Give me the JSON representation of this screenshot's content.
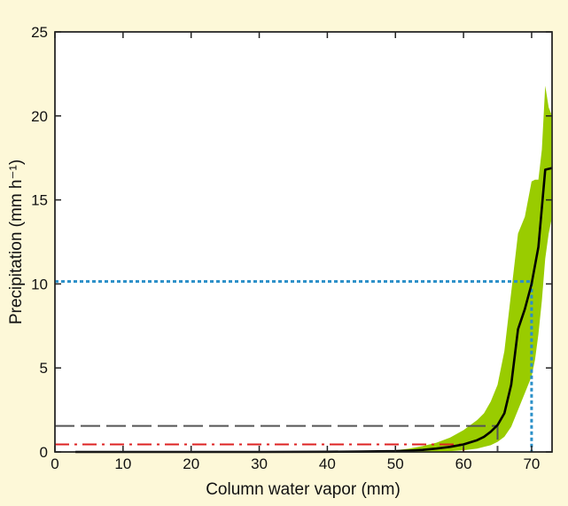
{
  "chart_data": {
    "type": "line",
    "xlabel": "Column water vapor (mm)",
    "ylabel": "Precipitation (mm h⁻¹)",
    "xlim": [
      0,
      73
    ],
    "ylim": [
      0,
      25
    ],
    "x_ticks": [
      0,
      10,
      20,
      30,
      40,
      50,
      60,
      70
    ],
    "y_ticks": [
      0,
      5,
      10,
      15,
      20,
      25
    ],
    "grid": false,
    "series": [
      {
        "kind": "line",
        "color": "#000000",
        "x": [
          3,
          10,
          20,
          30,
          40,
          45,
          50,
          52,
          54,
          56,
          58,
          60,
          62,
          63,
          64,
          65,
          66,
          67,
          68,
          69,
          70,
          71,
          72,
          73
        ],
        "y": [
          0.0,
          0.0,
          0.0,
          0.0,
          0.01,
          0.02,
          0.05,
          0.08,
          0.12,
          0.2,
          0.3,
          0.45,
          0.7,
          0.9,
          1.2,
          1.6,
          2.3,
          4.0,
          7.3,
          8.5,
          10.0,
          12.2,
          16.8,
          16.9
        ]
      }
    ],
    "band": {
      "color": "#99cc00",
      "x": [
        50,
        52,
        54,
        56,
        58,
        60,
        62,
        63,
        64,
        65,
        66,
        67,
        68,
        69,
        70,
        70.5,
        71,
        71.5,
        72,
        72.5,
        73
      ],
      "upper": [
        0.1,
        0.2,
        0.35,
        0.55,
        0.85,
        1.3,
        1.9,
        2.3,
        3.0,
        4.0,
        6.0,
        9.5,
        13.0,
        14.0,
        16.1,
        16.2,
        16.2,
        18.0,
        21.8,
        20.5,
        20.0
      ],
      "lower": [
        0.0,
        0.0,
        0.0,
        0.02,
        0.05,
        0.1,
        0.2,
        0.3,
        0.4,
        0.6,
        0.9,
        1.5,
        2.5,
        3.5,
        4.5,
        5.5,
        7.0,
        9.0,
        11.5,
        13.0,
        14.0
      ]
    },
    "reference_lines": [
      {
        "style": "dotted",
        "color": "#2a8fc8",
        "x": [
          0,
          70,
          70
        ],
        "y": [
          10.15,
          10.15,
          0
        ]
      },
      {
        "style": "dashed",
        "color": "#555555",
        "x": [
          0,
          65,
          65
        ],
        "y": [
          1.55,
          1.55,
          0
        ]
      },
      {
        "style": "dashdot",
        "color": "#dd2222",
        "x": [
          0,
          60,
          60
        ],
        "y": [
          0.45,
          0.45,
          0
        ]
      }
    ]
  }
}
